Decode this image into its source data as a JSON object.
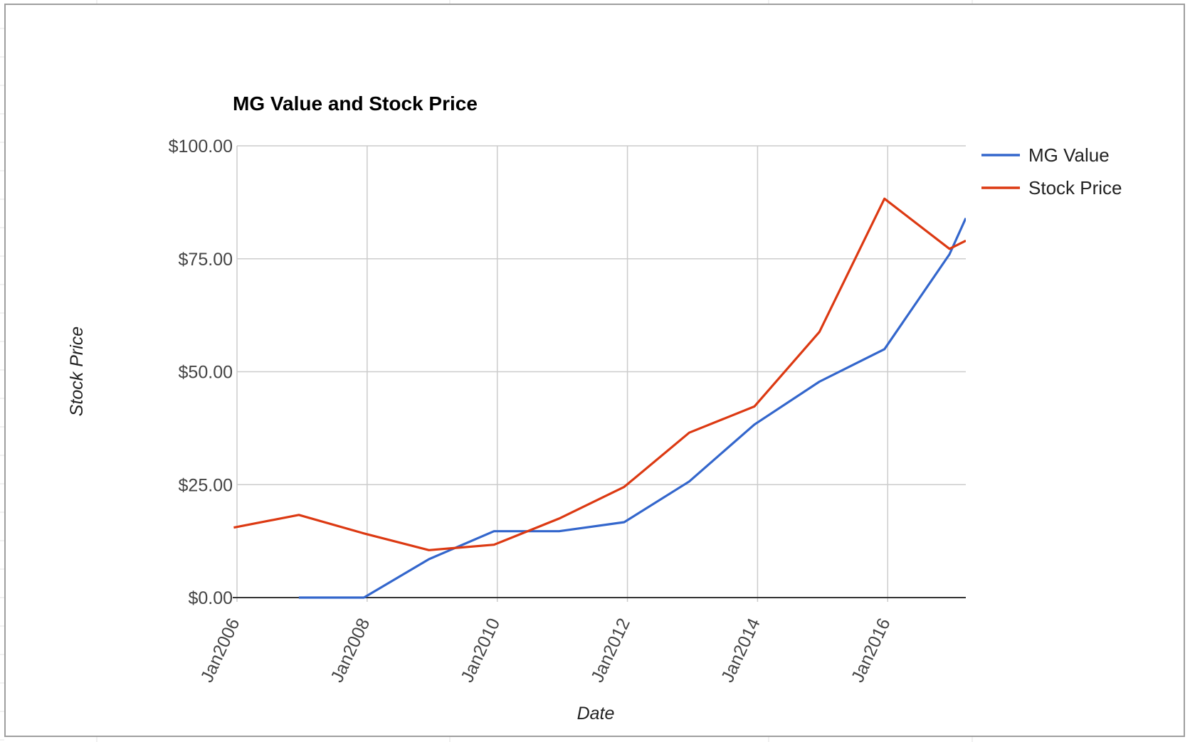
{
  "chart_data": {
    "type": "line",
    "title": "MG Value and Stock Price",
    "xlabel": "Date",
    "ylabel": "Stock Price",
    "ylim": [
      0,
      100
    ],
    "xlim": [
      "Jan2006",
      "Jan2017"
    ],
    "y_ticks": [
      "$0.00",
      "$25.00",
      "$50.00",
      "$75.00",
      "$100.00"
    ],
    "y_tick_values": [
      0,
      25,
      50,
      75,
      100
    ],
    "x_ticks": [
      "Jan2006",
      "Jan2008",
      "Jan2010",
      "Jan2012",
      "Jan2014",
      "Jan2016"
    ],
    "x_tick_years": [
      2006,
      2008,
      2010,
      2012,
      2014,
      2016
    ],
    "grid": true,
    "legend_position": "right",
    "series": [
      {
        "name": "MG Value",
        "color": "#3366cc",
        "points": [
          {
            "x": 2006.95,
            "y": 0
          },
          {
            "x": 2007.95,
            "y": 0
          },
          {
            "x": 2008.95,
            "y": 8.5
          },
          {
            "x": 2009.95,
            "y": 14.7
          },
          {
            "x": 2010.95,
            "y": 14.7
          },
          {
            "x": 2011.95,
            "y": 16.7
          },
          {
            "x": 2012.95,
            "y": 25.7
          },
          {
            "x": 2013.95,
            "y": 38.3
          },
          {
            "x": 2014.95,
            "y": 47.8
          },
          {
            "x": 2015.95,
            "y": 55.0
          },
          {
            "x": 2016.95,
            "y": 76.0
          },
          {
            "x": 2017.2,
            "y": 84.0
          }
        ]
      },
      {
        "name": "Stock Price",
        "color": "#dc3912",
        "points": [
          {
            "x": 2005.95,
            "y": 15.5
          },
          {
            "x": 2006.95,
            "y": 18.3
          },
          {
            "x": 2007.95,
            "y": 14.2
          },
          {
            "x": 2008.95,
            "y": 10.5
          },
          {
            "x": 2009.95,
            "y": 11.7
          },
          {
            "x": 2010.95,
            "y": 17.5
          },
          {
            "x": 2011.95,
            "y": 24.5
          },
          {
            "x": 2012.95,
            "y": 36.5
          },
          {
            "x": 2013.95,
            "y": 42.3
          },
          {
            "x": 2014.95,
            "y": 58.8
          },
          {
            "x": 2015.95,
            "y": 88.3
          },
          {
            "x": 2016.95,
            "y": 77.2
          },
          {
            "x": 2017.2,
            "y": 79.0
          }
        ]
      }
    ]
  }
}
